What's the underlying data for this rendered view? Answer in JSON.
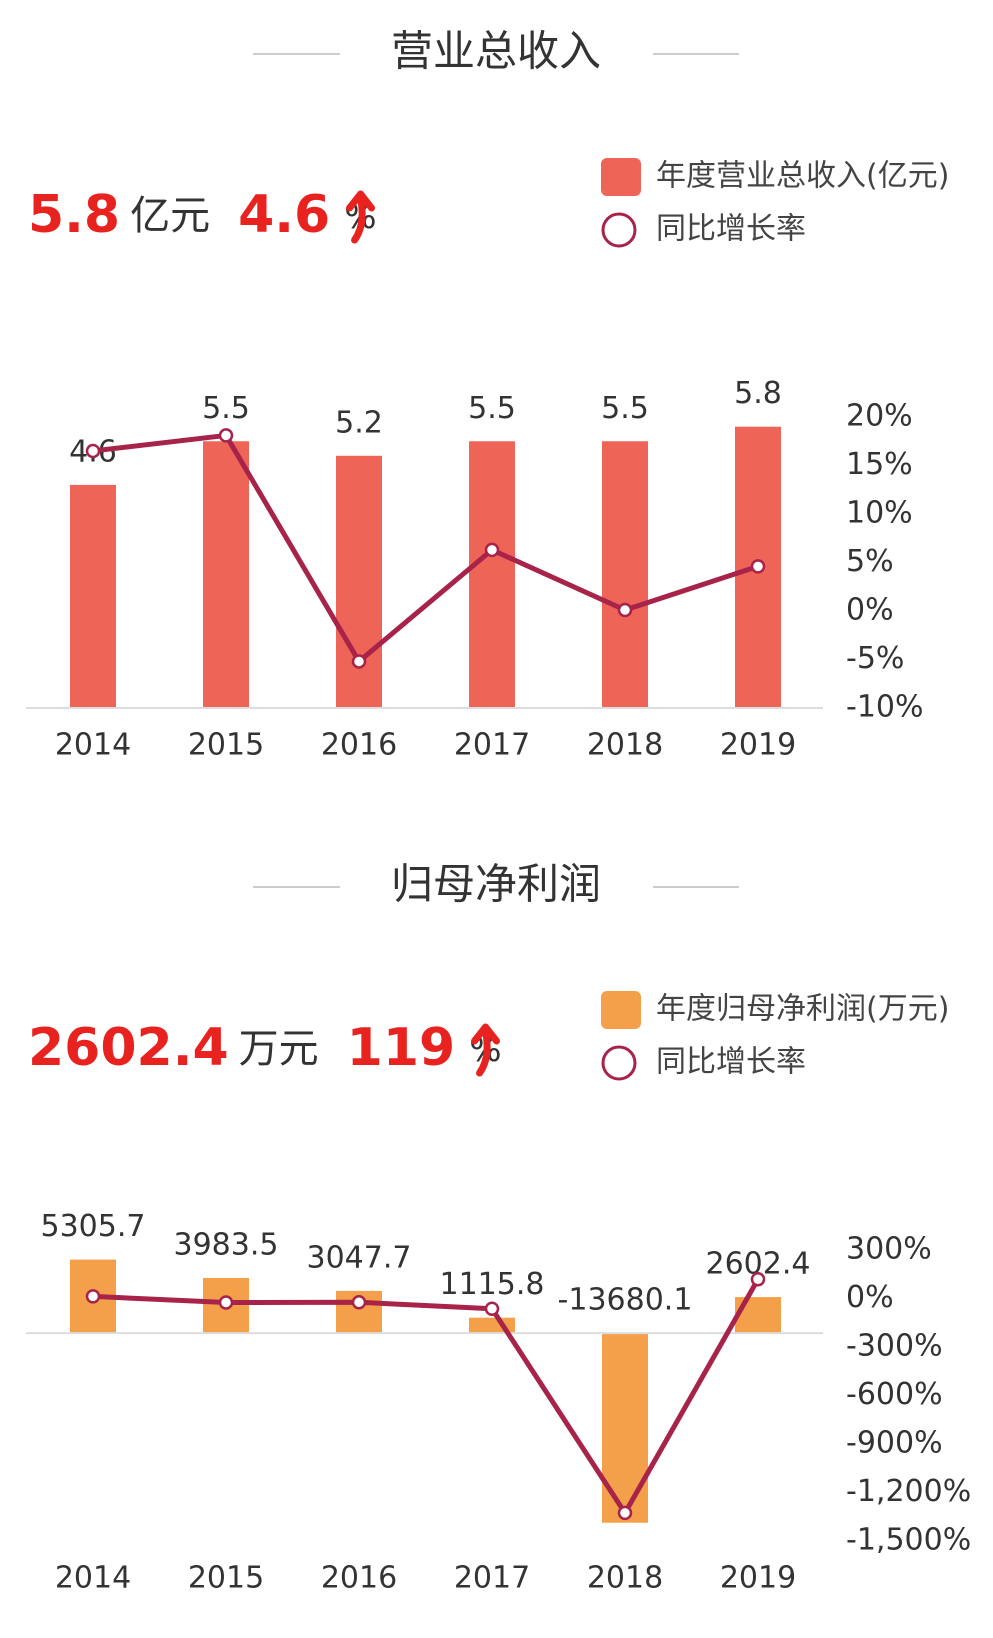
{
  "chart_data": [
    {
      "type": "bar",
      "title": "营业总收入",
      "headline": {
        "value": 5.8,
        "unit": "亿元",
        "growth": 4.6,
        "growth_unit": "%"
      },
      "categories": [
        "2014",
        "2015",
        "2016",
        "2017",
        "2018",
        "2019"
      ],
      "series": [
        {
          "name": "年度营业总收入(亿元)",
          "type": "bar",
          "color": "#ee6457",
          "values": [
            4.6,
            5.5,
            5.2,
            5.5,
            5.5,
            5.8
          ]
        },
        {
          "name": "同比增长率",
          "type": "line",
          "axis": "y2",
          "color": "#a8234a",
          "values": [
            16.5,
            18.1,
            -5.2,
            6.3,
            0.1,
            4.6
          ]
        }
      ],
      "ylim": [
        0,
        6
      ],
      "y2lim": [
        -10,
        20
      ],
      "y2ticks": [
        {
          "value": -10,
          "label": "-10%"
        },
        {
          "value": -5,
          "label": "-5%"
        },
        {
          "value": 0,
          "label": "0%"
        },
        {
          "value": 5,
          "label": "5%"
        },
        {
          "value": 10,
          "label": "10%"
        },
        {
          "value": 15,
          "label": "15%"
        },
        {
          "value": 20,
          "label": "20%"
        }
      ]
    },
    {
      "type": "bar",
      "title": "归母净利润",
      "headline": {
        "value": 2602.4,
        "unit": "万元",
        "growth": 119,
        "growth_unit": "%"
      },
      "categories": [
        "2014",
        "2015",
        "2016",
        "2017",
        "2018",
        "2019"
      ],
      "series": [
        {
          "name": "年度归母净利润(万元)",
          "type": "bar",
          "color": "#f4a04a",
          "values": [
            5305.7,
            3983.5,
            3047.7,
            1115.8,
            -13680.1,
            2602.4
          ]
        },
        {
          "name": "同比增长率",
          "type": "line",
          "axis": "y2",
          "color": "#a8234a",
          "values": [
            13,
            -24.9,
            -23.5,
            -63.4,
            -1326,
            119
          ]
        }
      ],
      "ylim": [
        -15000,
        6000
      ],
      "y2lim": [
        -1500,
        300
      ],
      "y2ticks": [
        {
          "value": -1500,
          "label": "-1,500%"
        },
        {
          "value": -1200,
          "label": "-1,200%"
        },
        {
          "value": -900,
          "label": "-900%"
        },
        {
          "value": -600,
          "label": "-600%"
        },
        {
          "value": -300,
          "label": "-300%"
        },
        {
          "value": 0,
          "label": "0%"
        },
        {
          "value": 300,
          "label": "300%"
        }
      ]
    }
  ]
}
